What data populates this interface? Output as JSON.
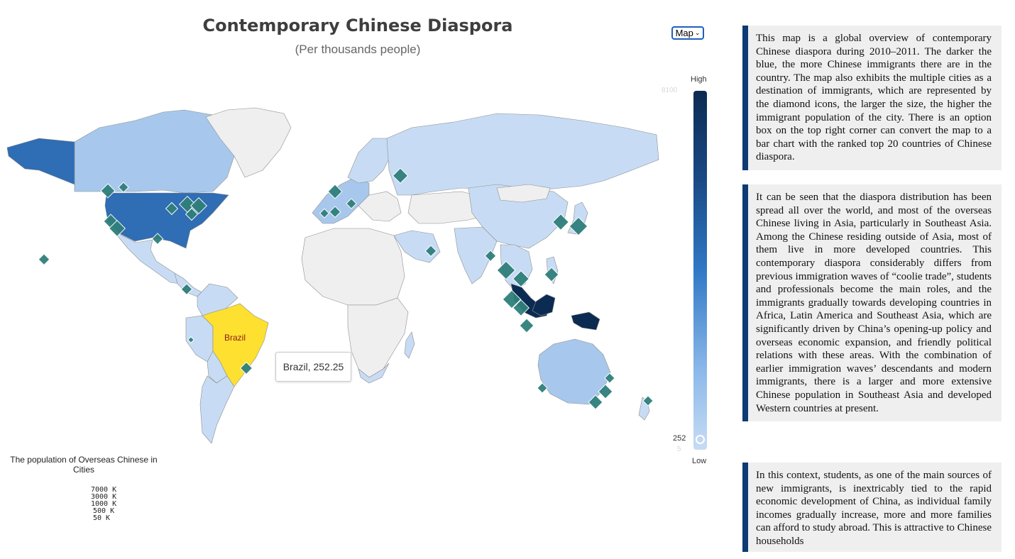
{
  "map": {
    "title": "Contemporary Chinese Diaspora",
    "subtitle": "(Per thousands people)",
    "view_select": {
      "selected": "Map",
      "chevron_icon": "chevron-down-icon"
    },
    "hovered_country_label": "Brazil",
    "tooltip": "Brazil, 252.25",
    "color_scale": {
      "high_label": "High",
      "low_label": "Low",
      "max_value": "8100",
      "min_value": "5",
      "current_value": "252",
      "colors": {
        "high": "#0c2b52",
        "mid": "#3178c6",
        "low": "#c7dcf4",
        "highlight": "#fde030",
        "no_data": "#efefef",
        "marker": "#2f7f7b"
      }
    },
    "city_legend": {
      "title": "The population of Overseas Chinese in Cities",
      "entries": [
        "7000 K",
        "3000 K",
        "1000 K",
        "500 K",
        "50 K"
      ]
    }
  },
  "text_panels": [
    "This map is a global overview of contemporary Chinese diaspora during 2010–2011. The darker the blue, the more Chinese immigrants there are in the country. The map also exhibits the multiple cities as a destination of immigrants, which are represented by the diamond icons, the larger the size, the higher the immigrant population of the city. There is an option box on the top right corner can convert the map to a bar chart with the ranked top 20 countries of Chinese diaspora.",
    "It can be seen that the diaspora distribution has been spread all over the world, and most of the overseas Chinese living in Asia, particularly in Southeast Asia. Among the Chinese residing outside of Asia, most of them live in more developed countries. This contemporary diaspora considerably differs from previous immigration waves of “coolie trade”, students and professionals become the main roles, and the immigrants gradually towards developing countries in Africa, Latin America and Southeast Asia, which are significantly driven by China’s opening-up policy and overseas economic expansion, and friendly political relations with these areas. With the combination of earlier immigration waves’ descendants and modern immigrants, there is a larger and more extensive Chinese population in Southeast Asia and developed Western countries at present.",
    "In this context, students, as one of the main sources of new immigrants, is inextricably tied to the rapid economic development of China, as individual family incomes gradually increase, more and more families can afford to study abroad. This is attractive to Chinese households"
  ]
}
